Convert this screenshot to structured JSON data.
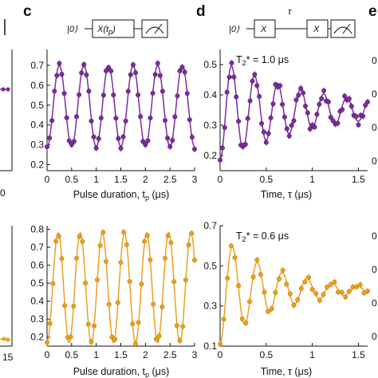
{
  "panels": {
    "c": "c",
    "d": "d",
    "e_partial": "e"
  },
  "circuits": {
    "c": {
      "state": "|0⟩",
      "gate": "X(t",
      "gate_sub": "p",
      "gate_close": ")"
    },
    "d": {
      "state": "|0⟩",
      "gate1": "X",
      "gate2": "X",
      "delay": "τ"
    }
  },
  "annotations": {
    "d_top": {
      "main": "T",
      "sub": "2",
      "rest": "* = 1.0 μs"
    },
    "d_bottom": {
      "main": "T",
      "sub": "2",
      "rest": "* = 0.6 μs"
    }
  },
  "axis_labels": {
    "c_x": "Pulse duration, t",
    "c_x_sub": "p",
    "c_x_unit": " (μs)",
    "d_x": "Time, τ (μs)"
  },
  "colors": {
    "purple": "#7b2d9c",
    "orange": "#e8a020",
    "orange_edge": "#c88010"
  },
  "chart_data": [
    {
      "id": "c-top",
      "type": "scatter",
      "fit": "line",
      "xlim": [
        0,
        3
      ],
      "ylim": [
        0.17,
        0.78
      ],
      "xticks": [
        0,
        0.5,
        1,
        1.5,
        2,
        2.5,
        3
      ],
      "xticklabels": [
        "0",
        "0.5",
        "1",
        "1.5",
        "2",
        "2.5",
        "3"
      ],
      "yticks": [
        0.2,
        0.3,
        0.4,
        0.5,
        0.6,
        0.7
      ],
      "yticklabels": [
        "0.2",
        "0.3",
        "0.4",
        "0.5",
        "0.6",
        "0.7"
      ],
      "color": "purple",
      "model": {
        "offset": 0.495,
        "amplitude": 0.205,
        "period": 0.5,
        "phase": 0.0
      },
      "points": {
        "x_start": 0.0,
        "x_step": 0.05,
        "count": 61
      }
    },
    {
      "id": "d-top",
      "type": "scatter",
      "fit": "line",
      "xlim": [
        0,
        1.6
      ],
      "ylim": [
        0.15,
        0.55
      ],
      "xticks": [
        0,
        0.5,
        1,
        1.5
      ],
      "xticklabels": [
        "0",
        "0.5",
        "1",
        "1.5"
      ],
      "yticks": [
        0.2,
        0.3,
        0.4,
        0.5
      ],
      "yticklabels": [
        "0.2",
        "0.3",
        "0.4",
        "0.5"
      ],
      "color": "purple",
      "model": {
        "offset": 0.35,
        "amplitude": 0.165,
        "period": 0.25,
        "phase": 0.0,
        "T2": 1.0
      },
      "points": {
        "x_start": 0.0,
        "x_step": 0.025,
        "count": 65
      }
    },
    {
      "id": "c-bottom",
      "type": "scatter",
      "fit": "line",
      "xlim": [
        0,
        3
      ],
      "ylim": [
        0.15,
        0.82
      ],
      "xticks": [
        0,
        0.5,
        1,
        1.5,
        2,
        2.5,
        3
      ],
      "xticklabels": [
        "0",
        "0.5",
        "1",
        "1.5",
        "2",
        "2.5",
        "3"
      ],
      "yticks": [
        0.2,
        0.3,
        0.4,
        0.5,
        0.6,
        0.7,
        0.8
      ],
      "yticklabels": [
        "0.2",
        "0.3",
        "0.4",
        "0.5",
        "0.6",
        "0.7",
        "0.8"
      ],
      "color": "orange",
      "model": {
        "offset": 0.475,
        "amplitude": 0.305,
        "period": 0.45,
        "phase": 0.0
      },
      "points": {
        "x_start": 0.0,
        "x_step": 0.06,
        "count": 51
      }
    },
    {
      "id": "d-bottom",
      "type": "scatter",
      "fit": "line",
      "xlim": [
        0,
        1.6
      ],
      "ylim": [
        0.1,
        0.7
      ],
      "xticks": [
        0,
        0.5,
        1,
        1.5
      ],
      "xticklabels": [
        "0",
        "0.5",
        "1",
        "1.5"
      ],
      "yticks": [
        0.1,
        0.3,
        0.5,
        0.7
      ],
      "yticklabels": [
        "0.1",
        "0.3",
        "0.5",
        "0.7"
      ],
      "color": "orange",
      "model": {
        "offset": 0.38,
        "amplitude": 0.27,
        "period": 0.27,
        "phase": 0.0,
        "T2": 0.6
      },
      "points": {
        "x_start": 0.0,
        "x_step": 0.04,
        "count": 41
      }
    }
  ],
  "partial_edges": {
    "left_top_tick": "0",
    "left_bottom_tick": "15",
    "right_tick": "0"
  }
}
